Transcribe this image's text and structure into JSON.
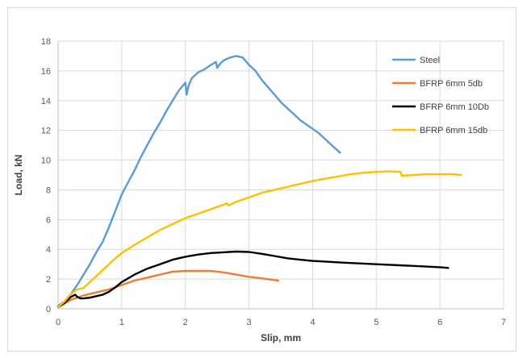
{
  "chart_data": {
    "type": "line",
    "title": "",
    "xlabel": "Slip, mm",
    "ylabel": "Load, kN",
    "xlim": [
      0,
      7
    ],
    "ylim": [
      0,
      18
    ],
    "x_ticks": [
      0,
      1,
      2,
      3,
      4,
      5,
      6,
      7
    ],
    "y_ticks": [
      0,
      2,
      4,
      6,
      8,
      10,
      12,
      14,
      16,
      18
    ],
    "grid": true,
    "legend_position": "top-right",
    "series": [
      {
        "name": "Steel",
        "color": "#5b9bd5",
        "points": [
          [
            0,
            0.2
          ],
          [
            0.1,
            0.5
          ],
          [
            0.2,
            1.0
          ],
          [
            0.3,
            1.6
          ],
          [
            0.4,
            2.3
          ],
          [
            0.5,
            3.0
          ],
          [
            0.6,
            3.8
          ],
          [
            0.7,
            4.5
          ],
          [
            0.8,
            5.5
          ],
          [
            0.9,
            6.6
          ],
          [
            1.0,
            7.7
          ],
          [
            1.1,
            8.5
          ],
          [
            1.2,
            9.3
          ],
          [
            1.3,
            10.2
          ],
          [
            1.4,
            11.0
          ],
          [
            1.5,
            11.8
          ],
          [
            1.6,
            12.5
          ],
          [
            1.7,
            13.3
          ],
          [
            1.8,
            14.0
          ],
          [
            1.9,
            14.7
          ],
          [
            2.0,
            15.2
          ],
          [
            2.02,
            14.4
          ],
          [
            2.05,
            15.0
          ],
          [
            2.1,
            15.5
          ],
          [
            2.2,
            15.9
          ],
          [
            2.3,
            16.1
          ],
          [
            2.4,
            16.4
          ],
          [
            2.48,
            16.6
          ],
          [
            2.5,
            16.2
          ],
          [
            2.55,
            16.5
          ],
          [
            2.6,
            16.7
          ],
          [
            2.7,
            16.9
          ],
          [
            2.8,
            17.0
          ],
          [
            2.9,
            16.9
          ],
          [
            3.0,
            16.4
          ],
          [
            3.1,
            16.0
          ],
          [
            3.2,
            15.4
          ],
          [
            3.3,
            14.9
          ],
          [
            3.4,
            14.4
          ],
          [
            3.5,
            13.9
          ],
          [
            3.6,
            13.5
          ],
          [
            3.7,
            13.1
          ],
          [
            3.8,
            12.7
          ],
          [
            3.9,
            12.4
          ],
          [
            4.0,
            12.1
          ],
          [
            4.1,
            11.8
          ],
          [
            4.2,
            11.4
          ],
          [
            4.3,
            11.0
          ],
          [
            4.43,
            10.5
          ]
        ]
      },
      {
        "name": "BFRP 6mm 5db",
        "color": "#ed7d31",
        "points": [
          [
            0,
            0.1
          ],
          [
            0.2,
            0.6
          ],
          [
            0.4,
            0.9
          ],
          [
            0.6,
            1.1
          ],
          [
            0.8,
            1.3
          ],
          [
            1.0,
            1.6
          ],
          [
            1.2,
            1.9
          ],
          [
            1.4,
            2.1
          ],
          [
            1.6,
            2.3
          ],
          [
            1.8,
            2.5
          ],
          [
            2.0,
            2.55
          ],
          [
            2.2,
            2.55
          ],
          [
            2.4,
            2.55
          ],
          [
            2.6,
            2.45
          ],
          [
            2.8,
            2.3
          ],
          [
            3.0,
            2.15
          ],
          [
            3.2,
            2.05
          ],
          [
            3.46,
            1.9
          ]
        ]
      },
      {
        "name": "BFRP 6mm 10Db",
        "color": "#000000",
        "points": [
          [
            0,
            0.1
          ],
          [
            0.1,
            0.4
          ],
          [
            0.2,
            0.8
          ],
          [
            0.27,
            0.95
          ],
          [
            0.3,
            0.8
          ],
          [
            0.35,
            0.7
          ],
          [
            0.4,
            0.7
          ],
          [
            0.5,
            0.75
          ],
          [
            0.6,
            0.85
          ],
          [
            0.7,
            0.95
          ],
          [
            0.8,
            1.15
          ],
          [
            0.9,
            1.45
          ],
          [
            1.0,
            1.8
          ],
          [
            1.2,
            2.3
          ],
          [
            1.4,
            2.7
          ],
          [
            1.6,
            3.0
          ],
          [
            1.8,
            3.3
          ],
          [
            2.0,
            3.5
          ],
          [
            2.2,
            3.65
          ],
          [
            2.4,
            3.75
          ],
          [
            2.6,
            3.8
          ],
          [
            2.8,
            3.85
          ],
          [
            3.0,
            3.82
          ],
          [
            3.2,
            3.7
          ],
          [
            3.4,
            3.55
          ],
          [
            3.6,
            3.4
          ],
          [
            3.8,
            3.3
          ],
          [
            4.0,
            3.22
          ],
          [
            4.5,
            3.1
          ],
          [
            5.0,
            3.0
          ],
          [
            5.5,
            2.9
          ],
          [
            6.0,
            2.8
          ],
          [
            6.13,
            2.75
          ]
        ]
      },
      {
        "name": "BFRP 6mm 15db",
        "color": "#ffc000",
        "points": [
          [
            0,
            0.1
          ],
          [
            0.1,
            0.5
          ],
          [
            0.2,
            1.0
          ],
          [
            0.3,
            1.3
          ],
          [
            0.4,
            1.4
          ],
          [
            0.5,
            1.8
          ],
          [
            0.6,
            2.2
          ],
          [
            0.7,
            2.6
          ],
          [
            0.8,
            3.0
          ],
          [
            0.9,
            3.4
          ],
          [
            1.0,
            3.75
          ],
          [
            1.2,
            4.3
          ],
          [
            1.4,
            4.8
          ],
          [
            1.6,
            5.3
          ],
          [
            1.8,
            5.7
          ],
          [
            2.0,
            6.1
          ],
          [
            2.2,
            6.4
          ],
          [
            2.4,
            6.7
          ],
          [
            2.6,
            7.0
          ],
          [
            2.65,
            7.1
          ],
          [
            2.68,
            6.95
          ],
          [
            2.8,
            7.2
          ],
          [
            3.0,
            7.5
          ],
          [
            3.2,
            7.8
          ],
          [
            3.4,
            8.0
          ],
          [
            3.6,
            8.2
          ],
          [
            3.8,
            8.4
          ],
          [
            4.0,
            8.6
          ],
          [
            4.2,
            8.75
          ],
          [
            4.4,
            8.9
          ],
          [
            4.6,
            9.05
          ],
          [
            4.8,
            9.15
          ],
          [
            5.0,
            9.2
          ],
          [
            5.2,
            9.25
          ],
          [
            5.38,
            9.2
          ],
          [
            5.4,
            8.95
          ],
          [
            5.6,
            9.0
          ],
          [
            5.8,
            9.05
          ],
          [
            6.0,
            9.05
          ],
          [
            6.2,
            9.05
          ],
          [
            6.33,
            9.0
          ]
        ]
      }
    ]
  }
}
